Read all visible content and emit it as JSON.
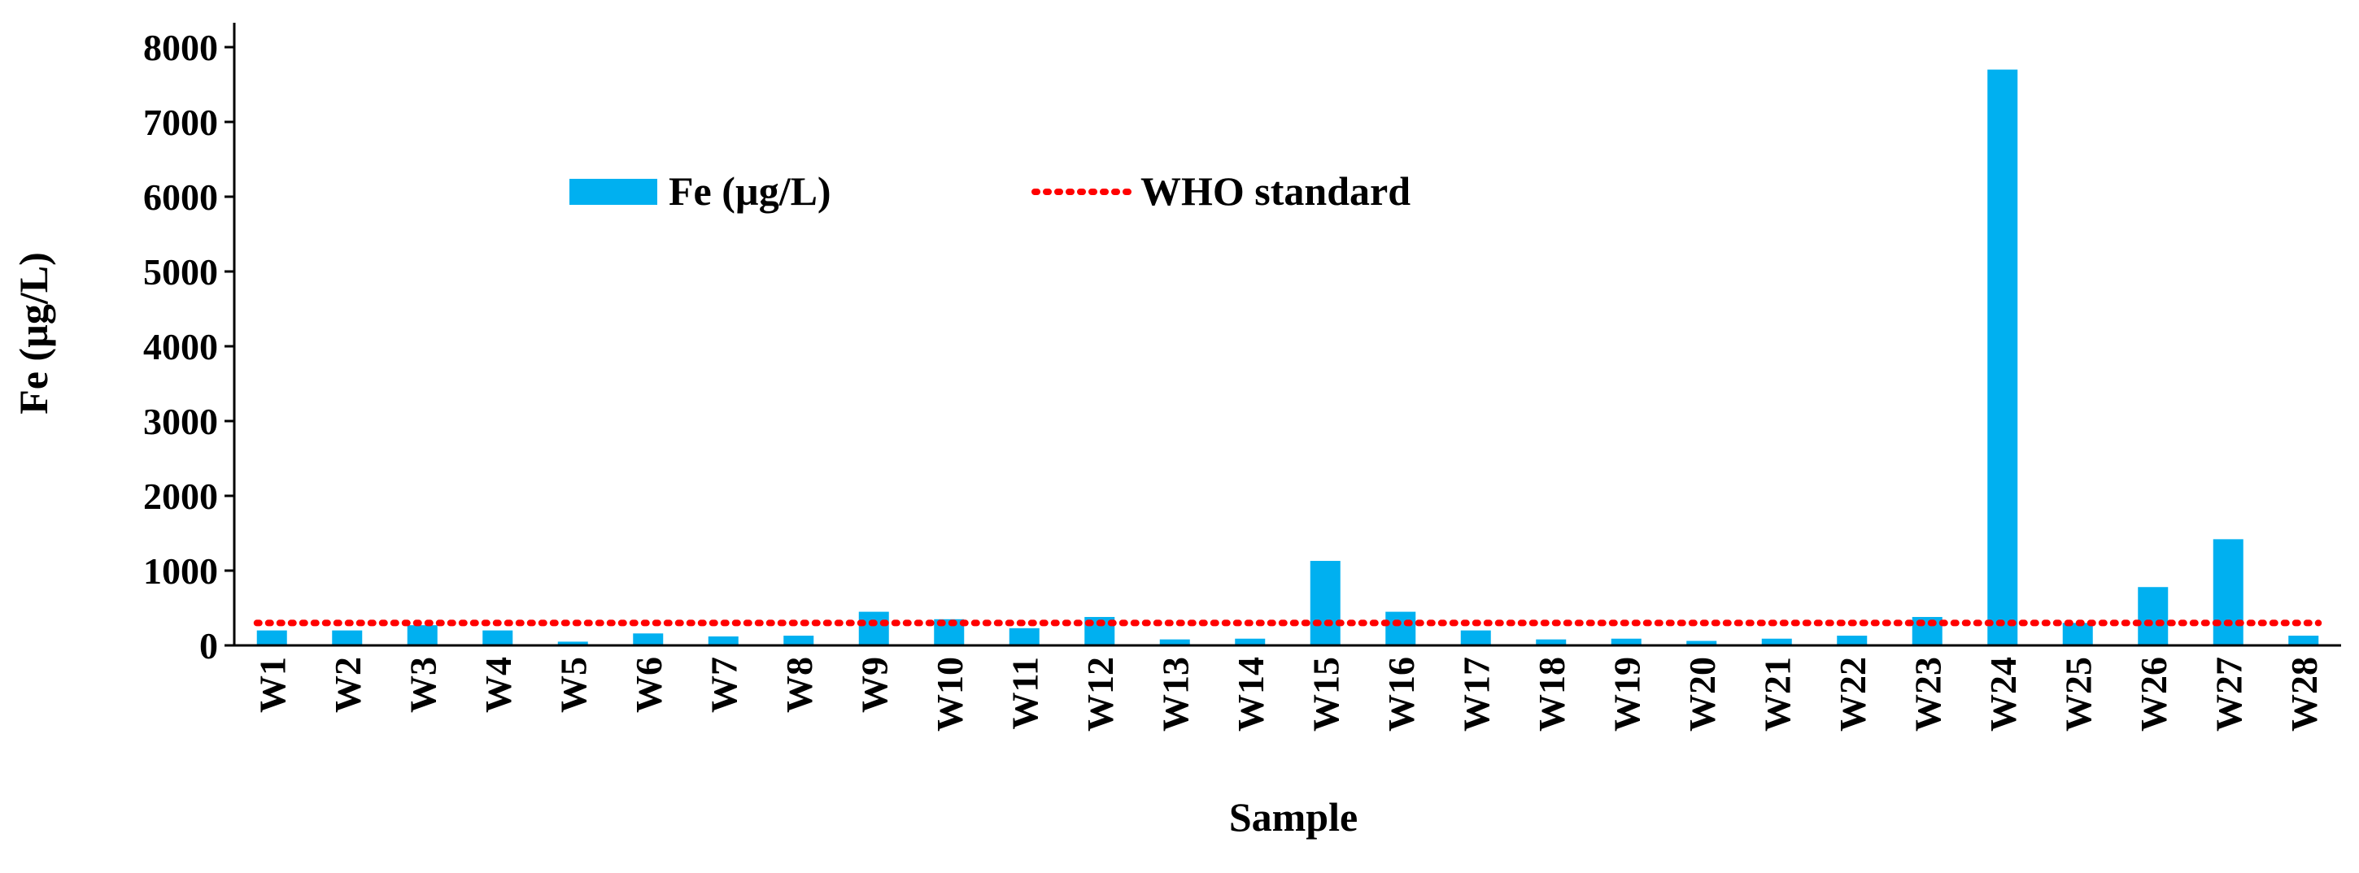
{
  "chart_data": {
    "type": "bar",
    "title": "",
    "xlabel": "Sample",
    "ylabel": "Fe (µg/L)",
    "ylim": [
      0,
      8000
    ],
    "yticks": [
      0,
      1000,
      2000,
      3000,
      4000,
      5000,
      6000,
      7000,
      8000
    ],
    "grid": false,
    "legend_position": "top",
    "categories": [
      "W1",
      "W2",
      "W3",
      "W4",
      "W5",
      "W6",
      "W7",
      "W8",
      "W9",
      "W10",
      "W11",
      "W12",
      "W13",
      "W14",
      "W15",
      "W16",
      "W17",
      "W18",
      "W19",
      "W20",
      "W21",
      "W22",
      "W23",
      "W24",
      "W25",
      "W26",
      "W27",
      "W28"
    ],
    "series": [
      {
        "name": "Fe (µg/L)",
        "type": "bar",
        "color": "#00b0f0",
        "values": [
          200,
          200,
          270,
          200,
          50,
          160,
          120,
          130,
          450,
          350,
          230,
          380,
          80,
          90,
          1130,
          450,
          200,
          80,
          90,
          60,
          90,
          130,
          380,
          7700,
          300,
          780,
          1420,
          130
        ]
      },
      {
        "name": "WHO standard",
        "type": "line",
        "style": "dotted",
        "color": "#ff0000",
        "value": 300
      }
    ]
  }
}
